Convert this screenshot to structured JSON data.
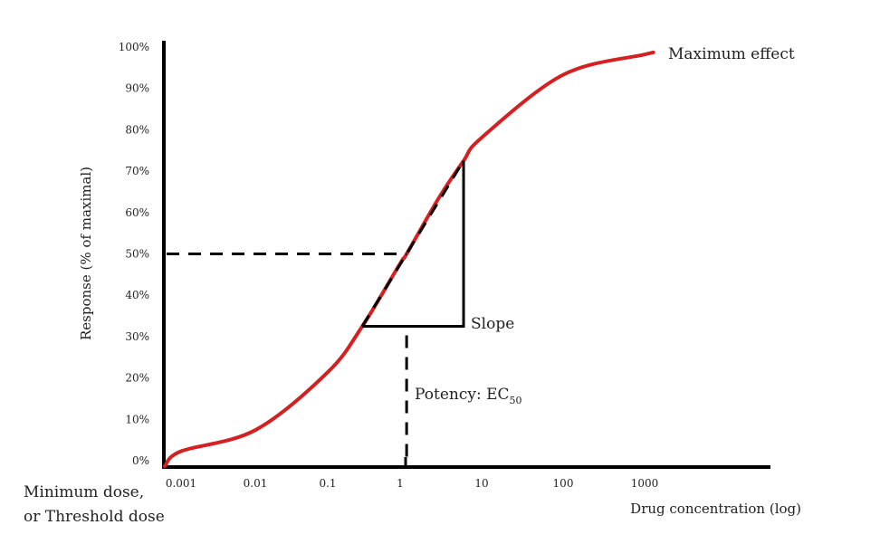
{
  "chart_data": {
    "type": "line",
    "title": "",
    "xlabel": "Drug concentration (log)",
    "ylabel": "Response (% of maximal)",
    "x_scale": "log",
    "x_ticks": [
      "0.001",
      "0.01",
      "0.1",
      "1",
      "10",
      "100",
      "1000"
    ],
    "y_ticks": [
      "0%",
      "10%",
      "20%",
      "30%",
      "40%",
      "50%",
      "60%",
      "70%",
      "80%",
      "90%",
      "100%"
    ],
    "ylim": [
      0,
      100
    ],
    "grid": false,
    "curve_color": "#d42020",
    "series": [
      {
        "x": [
          0.001,
          0.01,
          0.1,
          0.3,
          1,
          1.2,
          3,
          6,
          10,
          100,
          1000
        ],
        "y": [
          2.3,
          7.4,
          21.4,
          32.5,
          47.7,
          50,
          63.6,
          72.5,
          78.1,
          93.3,
          98.2
        ]
      }
    ],
    "ec50": {
      "x": 1.2,
      "y": 50
    },
    "slope_triangle": {
      "x1": 0.3,
      "x2": 6,
      "y1": 32.5,
      "y2": 72.5
    },
    "annotations": {
      "max_effect": "Maximum effect",
      "slope": "Slope",
      "potency": "Potency: EC",
      "potency_sub": "50",
      "min_dose_1": "Minimum dose,",
      "min_dose_2": "or Threshold dose"
    }
  }
}
